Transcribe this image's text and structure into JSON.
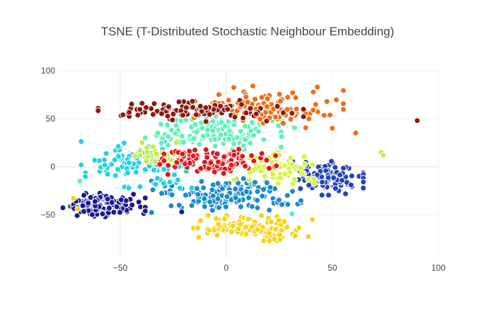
{
  "chart_data": {
    "type": "scatter",
    "title": "TSNE (T-Distributed Stochastic Neighbour Embedding)",
    "xlabel": "",
    "ylabel": "",
    "xlim": [
      -80,
      100
    ],
    "ylim": [
      -95,
      100
    ],
    "x_ticks": [
      -50,
      0,
      50,
      100
    ],
    "x_tick_labels": [
      "−50",
      "0",
      "50",
      "100"
    ],
    "y_ticks": [
      -50,
      0,
      50,
      100
    ],
    "y_tick_labels": [
      "−50",
      "0",
      "50",
      "100"
    ],
    "grid": true,
    "legend": false,
    "clusters": [
      {
        "color": "#1a1a8c",
        "center": [
          -58,
          -40
        ],
        "spread": [
          9,
          6
        ],
        "count": 140
      },
      {
        "color": "#2343b8",
        "center": [
          47,
          -12
        ],
        "spread": [
          8,
          8
        ],
        "count": 130
      },
      {
        "color": "#1a8bcc",
        "center": [
          0,
          -30
        ],
        "spread": [
          16,
          8
        ],
        "count": 150
      },
      {
        "color": "#26d0e0",
        "center": [
          -42,
          2
        ],
        "spread": [
          12,
          11
        ],
        "count": 120
      },
      {
        "color": "#5ff0b8",
        "center": [
          -3,
          35
        ],
        "spread": [
          16,
          8
        ],
        "count": 130
      },
      {
        "color": "#d4f53a",
        "center": [
          22,
          0
        ],
        "spread": [
          9,
          8
        ],
        "count": 80
      },
      {
        "color": "#c2ec4a",
        "center": [
          -32,
          12
        ],
        "spread": [
          8,
          6
        ],
        "count": 40
      },
      {
        "color": "#f5d316",
        "center": [
          12,
          -64
        ],
        "spread": [
          13,
          6
        ],
        "count": 120
      },
      {
        "color": "#e0181c",
        "center": [
          -5,
          5
        ],
        "spread": [
          13,
          6
        ],
        "count": 110
      },
      {
        "color": "#f06e14",
        "center": [
          20,
          62
        ],
        "spread": [
          16,
          10
        ],
        "count": 120
      },
      {
        "color": "#8c1a10",
        "center": [
          -12,
          58
        ],
        "spread": [
          22,
          5
        ],
        "count": 110
      }
    ],
    "outliers": [
      {
        "x": 90,
        "y": 48,
        "color": "#8c1a10"
      },
      {
        "x": 61,
        "y": 35,
        "color": "#f06e14"
      },
      {
        "x": 73,
        "y": 15,
        "color": "#c2ec4a"
      },
      {
        "x": 74,
        "y": 12,
        "color": "#c2ec4a"
      },
      {
        "x": -72,
        "y": -33,
        "color": "#f5d316"
      },
      {
        "x": -70,
        "y": -44,
        "color": "#f5d316"
      },
      {
        "x": -69,
        "y": -15,
        "color": "#5ff0b8"
      },
      {
        "x": 31,
        "y": -49,
        "color": "#5ff0b8"
      },
      {
        "x": 50,
        "y": 40,
        "color": "#f06e14"
      },
      {
        "x": -21,
        "y": -47,
        "color": "#1a1a8c"
      }
    ]
  }
}
